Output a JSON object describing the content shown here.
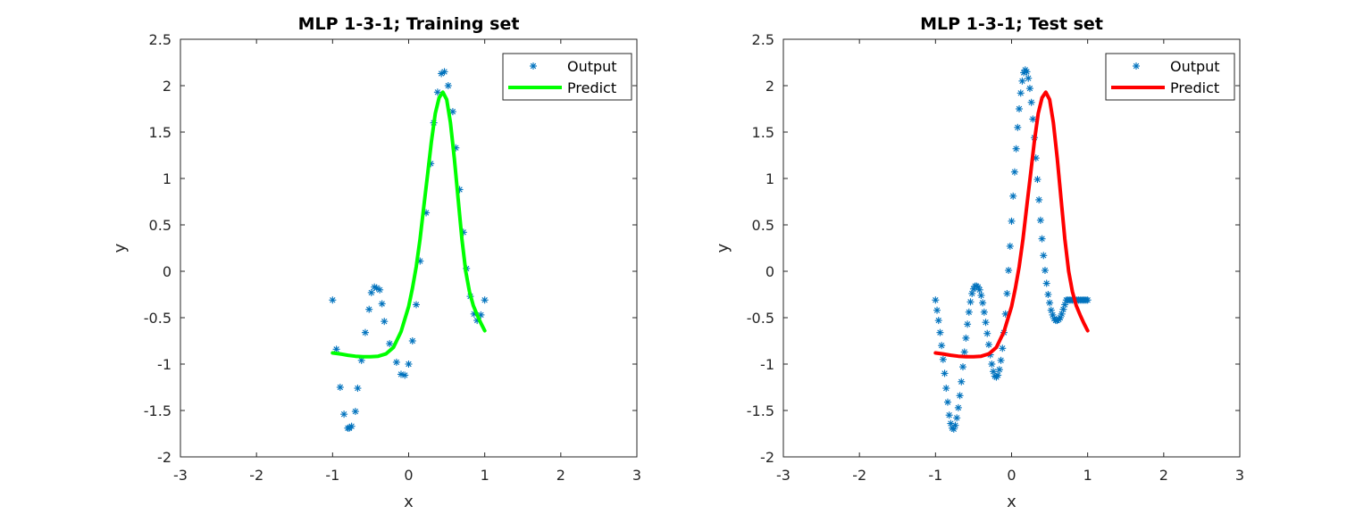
{
  "chart_data": [
    {
      "type": "scatter",
      "title": "MLP 1-3-1; Training set",
      "xlabel": "x",
      "ylabel": "y",
      "xlim": [
        -3,
        3
      ],
      "ylim": [
        -2,
        2.5
      ],
      "xticks": [
        -3,
        -2,
        -1,
        0,
        1,
        2,
        3
      ],
      "yticks": [
        -2,
        -1.5,
        -1,
        -0.5,
        0,
        0.5,
        1,
        1.5,
        2,
        2.5
      ],
      "xtick_labels": [
        "-3",
        "-2",
        "-1",
        "0",
        "1",
        "2",
        "3"
      ],
      "ytick_labels": [
        "-2",
        "-1.5",
        "-1",
        "-0.5",
        "0",
        "0.5",
        "1",
        "1.5",
        "2",
        "2.5"
      ],
      "grid": false,
      "legend_position": "top-right",
      "series": [
        {
          "name": "Output",
          "kind": "markers",
          "marker": "asterisk",
          "color": "#0072BD",
          "x": [
            -1.0,
            -0.95,
            -0.9,
            -0.85,
            -0.8,
            -0.78,
            -0.75,
            -0.7,
            -0.67,
            -0.62,
            -0.57,
            -0.52,
            -0.49,
            -0.45,
            -0.42,
            -0.38,
            -0.35,
            -0.32,
            -0.25,
            -0.16,
            -0.1,
            -0.05,
            0.0,
            0.05,
            0.1,
            0.15,
            0.23,
            0.29,
            0.33,
            0.38,
            0.43,
            0.47,
            0.52,
            0.58,
            0.62,
            0.67,
            0.72,
            0.76,
            0.81,
            0.86,
            0.9,
            0.95,
            1.0
          ],
          "y": [
            -0.31,
            -0.84,
            -1.25,
            -1.54,
            -1.69,
            -1.69,
            -1.67,
            -1.51,
            -1.26,
            -0.96,
            -0.66,
            -0.41,
            -0.23,
            -0.17,
            -0.18,
            -0.2,
            -0.35,
            -0.54,
            -0.78,
            -0.98,
            -1.11,
            -1.12,
            -1.0,
            -0.75,
            -0.36,
            0.11,
            0.63,
            1.16,
            1.6,
            1.93,
            2.13,
            2.15,
            2.0,
            1.72,
            1.33,
            0.88,
            0.42,
            0.03,
            -0.27,
            -0.46,
            -0.53,
            -0.47,
            -0.31
          ]
        },
        {
          "name": "Predict",
          "kind": "line",
          "color": "#00FF00",
          "x": [
            -1.0,
            -0.9,
            -0.8,
            -0.7,
            -0.6,
            -0.5,
            -0.4,
            -0.3,
            -0.2,
            -0.1,
            0.0,
            0.05,
            0.1,
            0.15,
            0.2,
            0.25,
            0.3,
            0.35,
            0.4,
            0.45,
            0.5,
            0.55,
            0.6,
            0.65,
            0.7,
            0.75,
            0.8,
            0.85,
            0.9,
            0.95,
            1.0
          ],
          "y": [
            -0.88,
            -0.89,
            -0.905,
            -0.915,
            -0.92,
            -0.92,
            -0.915,
            -0.89,
            -0.82,
            -0.65,
            -0.38,
            -0.18,
            0.05,
            0.35,
            0.7,
            1.05,
            1.4,
            1.7,
            1.87,
            1.93,
            1.85,
            1.6,
            1.22,
            0.78,
            0.35,
            0.0,
            -0.22,
            -0.37,
            -0.47,
            -0.56,
            -0.64
          ]
        }
      ]
    },
    {
      "type": "scatter",
      "title": "MLP 1-3-1; Test set",
      "xlabel": "x",
      "ylabel": "y",
      "xlim": [
        -3,
        3
      ],
      "ylim": [
        -2,
        2.5
      ],
      "xticks": [
        -3,
        -2,
        -1,
        0,
        1,
        2,
        3
      ],
      "yticks": [
        -2,
        -1.5,
        -1,
        -0.5,
        0,
        0.5,
        1,
        1.5,
        2,
        2.5
      ],
      "xtick_labels": [
        "-3",
        "-2",
        "-1",
        "0",
        "1",
        "2",
        "3"
      ],
      "ytick_labels": [
        "-2",
        "-1.5",
        "-1",
        "-0.5",
        "0",
        "0.5",
        "1",
        "1.5",
        "2",
        "2.5"
      ],
      "grid": false,
      "legend_position": "top-right",
      "series": [
        {
          "name": "Output",
          "kind": "markers",
          "marker": "asterisk",
          "color": "#0072BD",
          "x": [
            -1.0,
            -0.98,
            -0.96,
            -0.94,
            -0.92,
            -0.9,
            -0.88,
            -0.86,
            -0.84,
            -0.82,
            -0.8,
            -0.78,
            -0.76,
            -0.74,
            -0.72,
            -0.7,
            -0.68,
            -0.66,
            -0.64,
            -0.62,
            -0.6,
            -0.58,
            -0.56,
            -0.54,
            -0.52,
            -0.5,
            -0.48,
            -0.46,
            -0.44,
            -0.42,
            -0.4,
            -0.38,
            -0.36,
            -0.34,
            -0.32,
            -0.3,
            -0.28,
            -0.26,
            -0.24,
            -0.22,
            -0.2,
            -0.18,
            -0.16,
            -0.14,
            -0.12,
            -0.1,
            -0.08,
            -0.06,
            -0.04,
            -0.02,
            0.0,
            0.02,
            0.04,
            0.06,
            0.08,
            0.1,
            0.12,
            0.14,
            0.16,
            0.18,
            0.2,
            0.22,
            0.24,
            0.26,
            0.28,
            0.3,
            0.32,
            0.34,
            0.36,
            0.38,
            0.4,
            0.42,
            0.44,
            0.46,
            0.48,
            0.5,
            0.52,
            0.54,
            0.56,
            0.58,
            0.6,
            0.62,
            0.64,
            0.66,
            0.68,
            0.7,
            0.72,
            0.74,
            0.76,
            0.78,
            0.8,
            0.82,
            0.84,
            0.86,
            0.88,
            0.9,
            0.92,
            0.94,
            0.96,
            0.98,
            1.0
          ],
          "y": [
            -0.31,
            -0.42,
            -0.53,
            -0.66,
            -0.8,
            -0.95,
            -1.1,
            -1.26,
            -1.41,
            -1.55,
            -1.64,
            -1.69,
            -1.7,
            -1.66,
            -1.58,
            -1.47,
            -1.34,
            -1.19,
            -1.03,
            -0.87,
            -0.72,
            -0.57,
            -0.44,
            -0.33,
            -0.24,
            -0.19,
            -0.16,
            -0.16,
            -0.17,
            -0.2,
            -0.26,
            -0.34,
            -0.44,
            -0.55,
            -0.67,
            -0.79,
            -0.9,
            -1.0,
            -1.08,
            -1.13,
            -1.14,
            -1.12,
            -1.06,
            -0.96,
            -0.83,
            -0.66,
            -0.46,
            -0.24,
            0.01,
            0.27,
            0.54,
            0.81,
            1.07,
            1.32,
            1.55,
            1.75,
            1.92,
            2.05,
            2.14,
            2.17,
            2.15,
            2.08,
            1.97,
            1.82,
            1.64,
            1.44,
            1.22,
            0.99,
            0.77,
            0.55,
            0.35,
            0.17,
            0.01,
            -0.13,
            -0.25,
            -0.34,
            -0.42,
            -0.47,
            -0.51,
            -0.53,
            -0.53,
            -0.52,
            -0.5,
            -0.46,
            -0.41,
            -0.36,
            -0.31,
            -0.31,
            -0.31,
            -0.31,
            -0.31,
            -0.31,
            -0.31,
            -0.31,
            -0.31,
            -0.31,
            -0.31,
            -0.31,
            -0.31,
            -0.31,
            -0.31
          ]
        },
        {
          "name": "Predict",
          "kind": "line",
          "color": "#FF0000",
          "x": [
            -1.0,
            -0.9,
            -0.8,
            -0.7,
            -0.6,
            -0.5,
            -0.4,
            -0.3,
            -0.2,
            -0.1,
            0.0,
            0.05,
            0.1,
            0.15,
            0.2,
            0.25,
            0.3,
            0.35,
            0.4,
            0.45,
            0.5,
            0.55,
            0.6,
            0.65,
            0.7,
            0.75,
            0.8,
            0.85,
            0.9,
            0.95,
            1.0
          ],
          "y": [
            -0.88,
            -0.89,
            -0.905,
            -0.915,
            -0.92,
            -0.92,
            -0.915,
            -0.89,
            -0.82,
            -0.65,
            -0.38,
            -0.18,
            0.05,
            0.35,
            0.7,
            1.05,
            1.4,
            1.7,
            1.87,
            1.93,
            1.85,
            1.6,
            1.22,
            0.78,
            0.35,
            0.0,
            -0.22,
            -0.37,
            -0.47,
            -0.56,
            -0.64
          ]
        }
      ]
    }
  ]
}
